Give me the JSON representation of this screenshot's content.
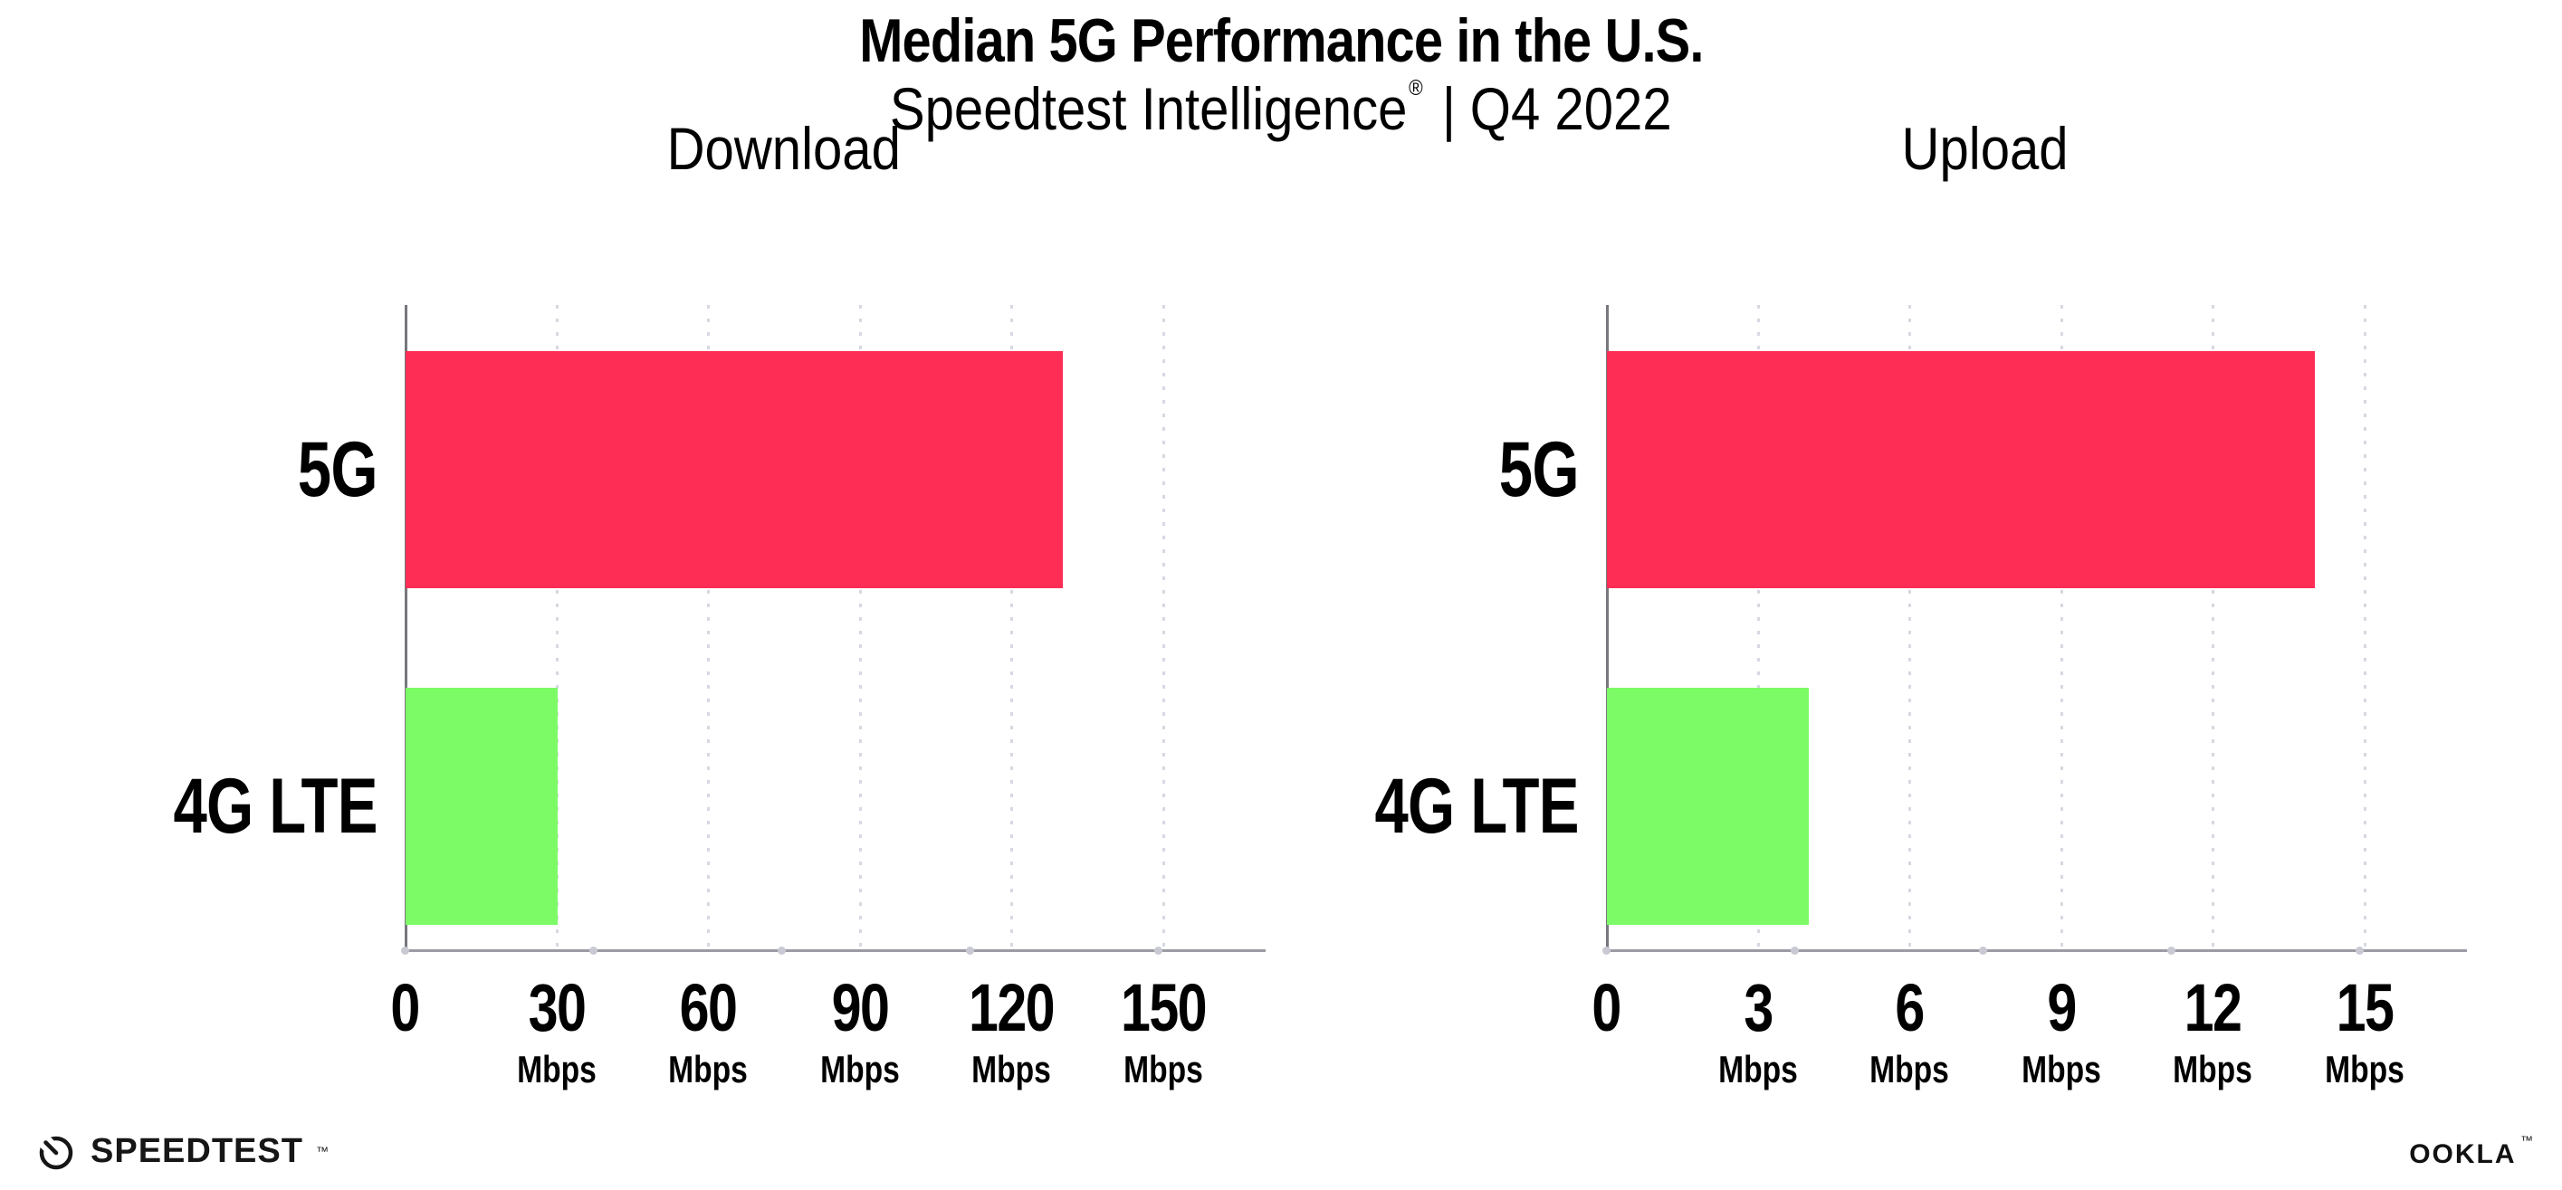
{
  "header": {
    "title": "Median 5G Performance in the U.S.",
    "subtitle": {
      "brand": "Speedtest Intelligence",
      "registered_mark": "®",
      "separator": "|",
      "period": "Q4 2022"
    }
  },
  "chart_data": [
    {
      "type": "bar",
      "orientation": "horizontal",
      "title": "Download",
      "categories": [
        "5G",
        "4G LTE"
      ],
      "values": [
        130,
        30
      ],
      "value_unit": "Mbps",
      "xlim": [
        0,
        150
      ],
      "xticks": [
        0,
        30,
        60,
        90,
        120,
        150
      ],
      "xtick_unit": "Mbps",
      "bar_colors": [
        "#FE2D55",
        "#7DFB66"
      ],
      "grid": "vertical-dotted",
      "legend": "none"
    },
    {
      "type": "bar",
      "orientation": "horizontal",
      "title": "Upload",
      "categories": [
        "5G",
        "4G LTE"
      ],
      "values": [
        14,
        4
      ],
      "value_unit": "Mbps",
      "xlim": [
        0,
        15
      ],
      "xticks": [
        0,
        3,
        6,
        9,
        12,
        15
      ],
      "xtick_unit": "Mbps",
      "bar_colors": [
        "#FE2D55",
        "#7DFB66"
      ],
      "grid": "vertical-dotted",
      "legend": "none"
    }
  ],
  "footer": {
    "speedtest": {
      "label": "SPEEDTEST",
      "trademark": "™",
      "icon": "speedometer-gauge-icon"
    },
    "ookla": {
      "label": "OOKLA",
      "trademark": "™"
    }
  },
  "colors": {
    "background": "#FFFFFF",
    "text": "#000000",
    "bar_5g": "#FE2D55",
    "bar_4g_lte": "#7DFB66",
    "y_axis_line": "#77777D",
    "x_axis_line": "#9B9BA4",
    "gridline": "#D8D8E2",
    "axis_dot": "#C9C9D3"
  }
}
